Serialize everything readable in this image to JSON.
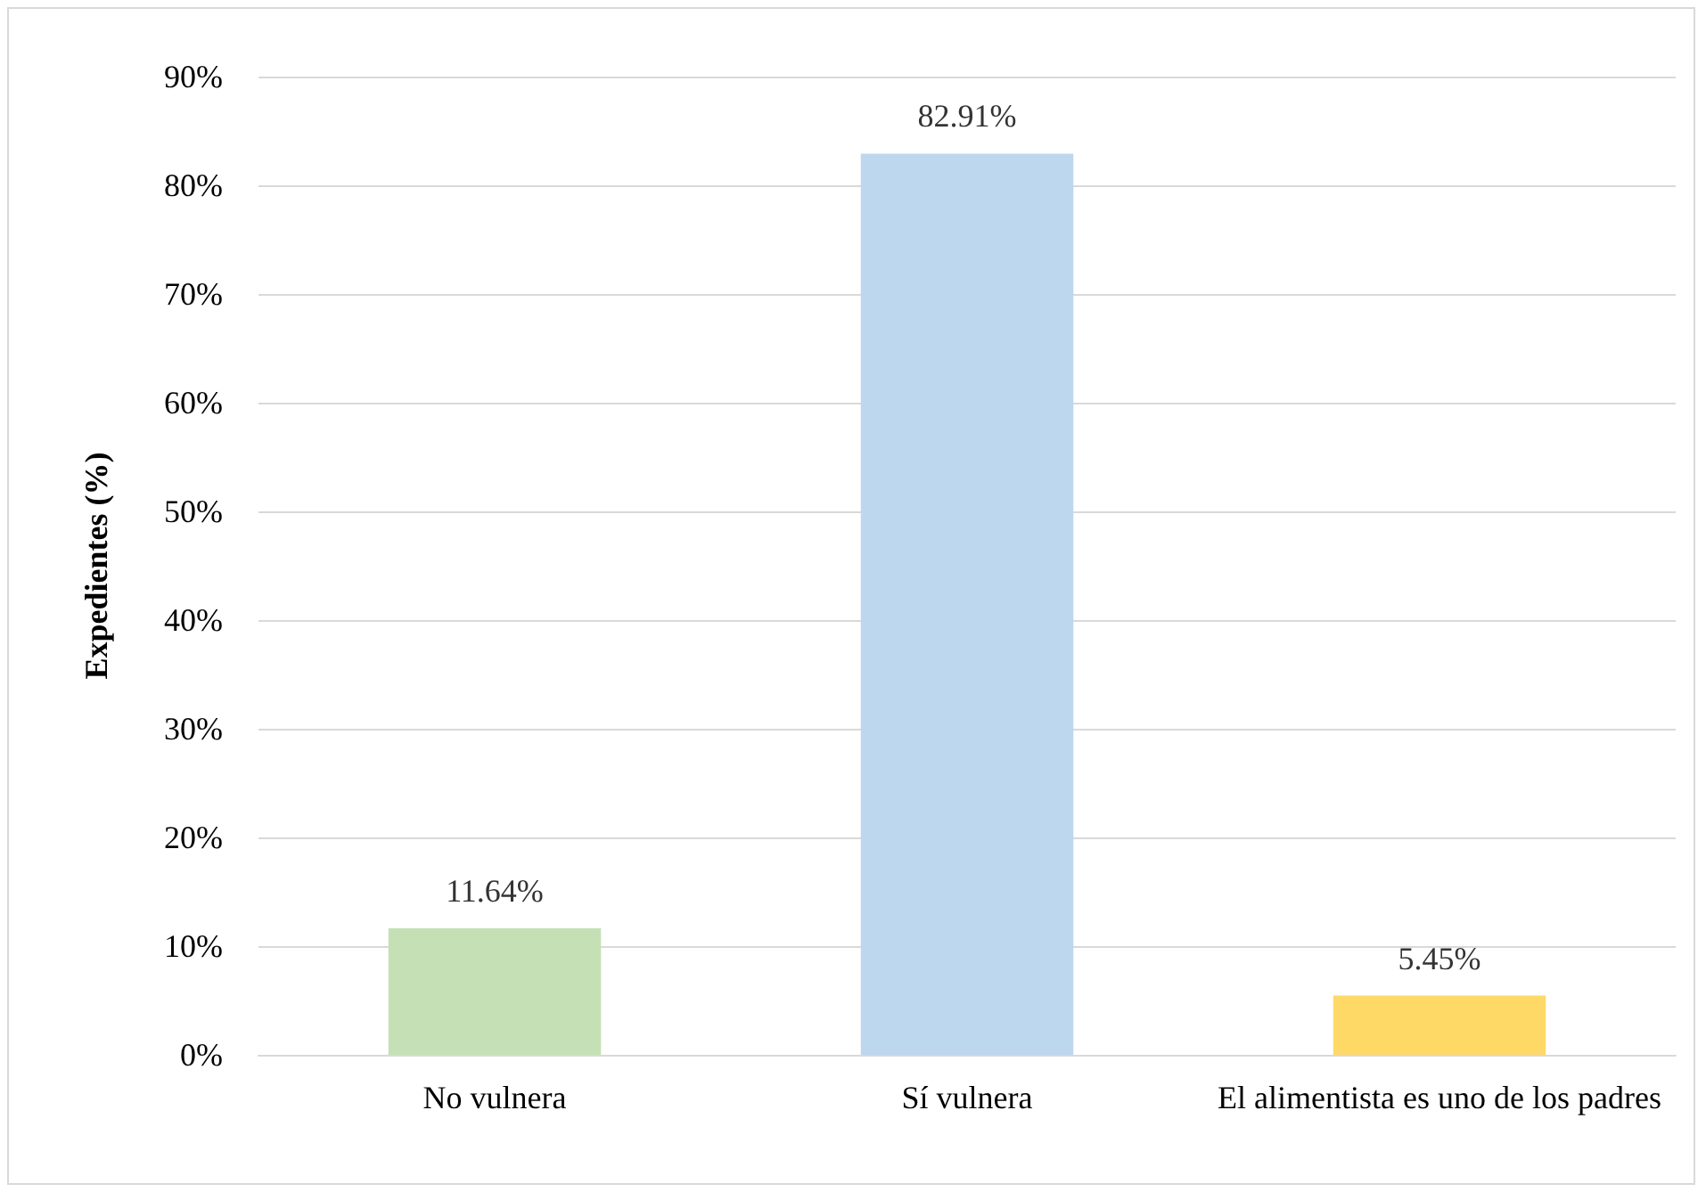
{
  "chart_data": {
    "type": "bar",
    "ylabel": "Expedientes (%)",
    "categories": [
      "No vulnera",
      "Sí vulnera",
      "El alimentista es uno de los padres"
    ],
    "values": [
      11.64,
      82.91,
      5.45
    ],
    "colors": [
      "#c5e0b4",
      "#bdd7ee",
      "#ffd966"
    ],
    "value_labels": [
      "11.64%",
      "82.91%",
      "5.45%"
    ],
    "ylim": [
      0,
      90
    ],
    "yticks": [
      {
        "value": 0,
        "label": "0%"
      },
      {
        "value": 10,
        "label": "10%"
      },
      {
        "value": 20,
        "label": "20%"
      },
      {
        "value": 30,
        "label": "30%"
      },
      {
        "value": 40,
        "label": "40%"
      },
      {
        "value": 50,
        "label": "50%"
      },
      {
        "value": 60,
        "label": "60%"
      },
      {
        "value": 70,
        "label": "70%"
      },
      {
        "value": 80,
        "label": "80%"
      },
      {
        "value": 90,
        "label": "90%"
      }
    ],
    "grid": "y"
  }
}
